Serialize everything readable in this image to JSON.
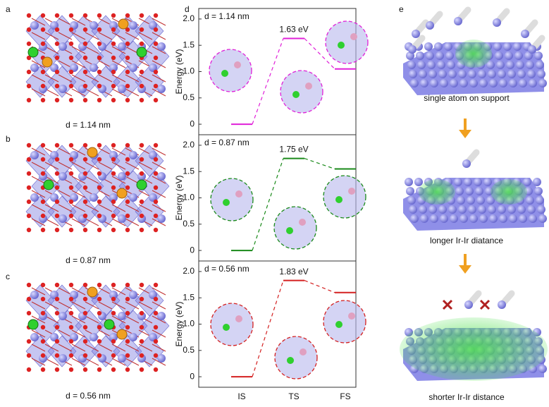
{
  "figure": {
    "panel_labels": [
      "a",
      "b",
      "c",
      "d",
      "e"
    ],
    "left_captions": [
      "d = 1.14 nm",
      "d = 0.87 nm",
      "d = 0.56 nm"
    ],
    "right_captions": [
      "single atom on support",
      "longer Ir-Ir diatance",
      "shorter Ir-Ir distance"
    ]
  },
  "chart_data": [
    {
      "type": "line",
      "annotation": "d = 1.14 nm",
      "y_label": "Energy (eV)",
      "categories": [
        null,
        null,
        null
      ],
      "values": [
        0,
        1.63,
        1.05
      ],
      "value_labels": [
        null,
        "1.63 eV",
        null
      ],
      "color": "#e020d8",
      "ylim": [
        -0.2,
        2.2
      ],
      "yticks": [
        0,
        0.5,
        {
          "value": 1,
          "label": "1.0"
        },
        1.5,
        {
          "value": 2,
          "label": "2.0"
        }
      ]
    },
    {
      "type": "line",
      "annotation": "d = 0.87 nm",
      "y_label": "Energy (eV)",
      "categories": [
        null,
        null,
        null
      ],
      "values": [
        0,
        1.75,
        1.55
      ],
      "value_labels": [
        null,
        "1.75 eV",
        null
      ],
      "color": "#1a8a1a",
      "ylim": [
        -0.2,
        2.2
      ],
      "yticks": [
        0,
        0.5,
        {
          "value": 1,
          "label": "1.0"
        },
        1.5,
        {
          "value": 2,
          "label": "2.0"
        }
      ]
    },
    {
      "type": "line",
      "annotation": "d = 0.56 nm",
      "y_label": "Energy (eV)",
      "categories": [
        "IS",
        "TS",
        "FS"
      ],
      "values": [
        0,
        1.83,
        1.6
      ],
      "value_labels": [
        null,
        "1.83 eV",
        null
      ],
      "color": "#d42020",
      "ylim": [
        -0.2,
        2.2
      ],
      "yticks": [
        0,
        0.5,
        {
          "value": 1,
          "label": "1.0"
        },
        1.5,
        {
          "value": 2,
          "label": "2.0"
        }
      ]
    }
  ]
}
